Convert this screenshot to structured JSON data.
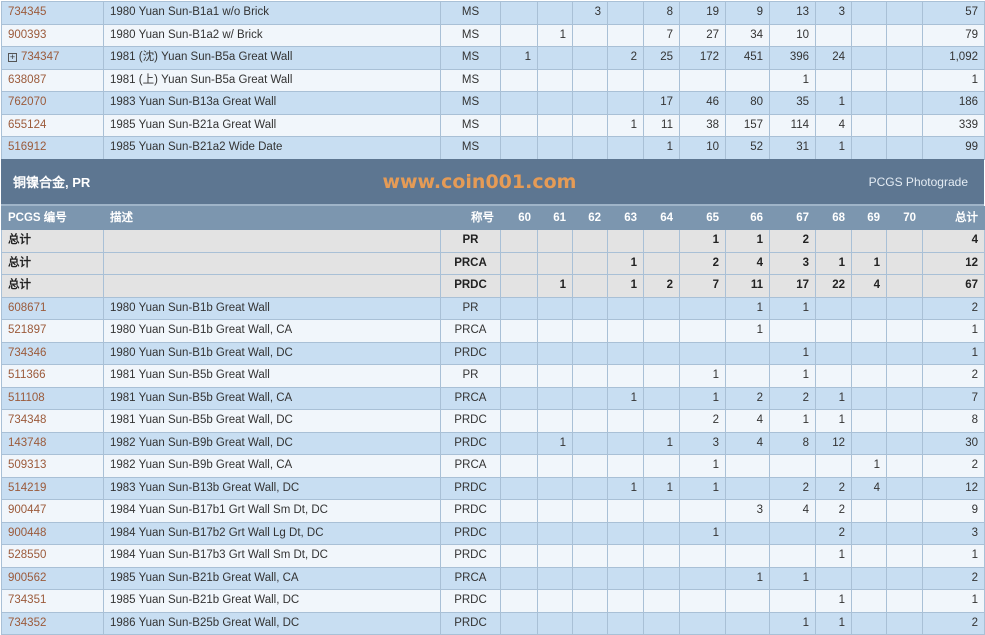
{
  "grades": [
    "60",
    "61",
    "62",
    "63",
    "64",
    "65",
    "66",
    "67",
    "68",
    "69",
    "70"
  ],
  "ms_rows": [
    {
      "id": "734345",
      "desc": "1980 Yuan Sun-B1a1 w/o Brick",
      "grade": "MS",
      "counts": [
        "",
        "",
        "3",
        "",
        "8",
        "19",
        "9",
        "13",
        "3",
        "",
        ""
      ],
      "total": "57"
    },
    {
      "id": "900393",
      "desc": "1980 Yuan Sun-B1a2 w/ Brick",
      "grade": "MS",
      "counts": [
        "",
        "1",
        "",
        "",
        "7",
        "27",
        "34",
        "10",
        "",
        "",
        ""
      ],
      "total": "79"
    },
    {
      "id": "734347",
      "expandable": true,
      "desc": "1981 (沈) Yuan Sun-B5a Great Wall",
      "grade": "MS",
      "counts": [
        "1",
        "",
        "",
        "2",
        "25",
        "172",
        "451",
        "396",
        "24",
        "",
        ""
      ],
      "total": "1,092"
    },
    {
      "id": "638087",
      "desc": "1981 (上) Yuan Sun-B5a Great Wall",
      "grade": "MS",
      "counts": [
        "",
        "",
        "",
        "",
        "",
        "",
        "",
        "1",
        "",
        "",
        ""
      ],
      "total": "1"
    },
    {
      "id": "762070",
      "desc": "1983 Yuan Sun-B13a Great Wall",
      "grade": "MS",
      "counts": [
        "",
        "",
        "",
        "",
        "17",
        "46",
        "80",
        "35",
        "1",
        "",
        ""
      ],
      "total": "186"
    },
    {
      "id": "655124",
      "desc": "1985 Yuan Sun-B21a Great Wall",
      "grade": "MS",
      "counts": [
        "",
        "",
        "",
        "1",
        "11",
        "38",
        "157",
        "114",
        "4",
        "",
        ""
      ],
      "total": "339"
    },
    {
      "id": "516912",
      "desc": "1985 Yuan Sun-B21a2 Wide Date",
      "grade": "MS",
      "counts": [
        "",
        "",
        "",
        "",
        "1",
        "10",
        "52",
        "31",
        "1",
        "",
        ""
      ],
      "total": "99"
    }
  ],
  "section": {
    "title": "铜镍合金, PR",
    "link": "PCGS Photograde"
  },
  "headers": {
    "id": "PCGS 编号",
    "desc": "描述",
    "grade": "称号",
    "total": "总计"
  },
  "totals": [
    {
      "label": "总计",
      "grade": "PR",
      "counts": [
        "",
        "",
        "",
        "",
        "",
        "1",
        "1",
        "2",
        "",
        "",
        ""
      ],
      "total": "4"
    },
    {
      "label": "总计",
      "grade": "PRCA",
      "counts": [
        "",
        "",
        "",
        "1",
        "",
        "2",
        "4",
        "3",
        "1",
        "1",
        ""
      ],
      "total": "12"
    },
    {
      "label": "总计",
      "grade": "PRDC",
      "counts": [
        "",
        "1",
        "",
        "1",
        "2",
        "7",
        "11",
        "17",
        "22",
        "4",
        ""
      ],
      "total": "67"
    }
  ],
  "pr_rows": [
    {
      "id": "608671",
      "desc": "1980 Yuan Sun-B1b Great Wall",
      "grade": "PR",
      "counts": [
        "",
        "",
        "",
        "",
        "",
        "",
        "1",
        "1",
        "",
        "",
        ""
      ],
      "total": "2"
    },
    {
      "id": "521897",
      "desc": "1980 Yuan Sun-B1b Great Wall, CA",
      "grade": "PRCA",
      "counts": [
        "",
        "",
        "",
        "",
        "",
        "",
        "1",
        "",
        "",
        "",
        ""
      ],
      "total": "1"
    },
    {
      "id": "734346",
      "desc": "1980 Yuan Sun-B1b Great Wall, DC",
      "grade": "PRDC",
      "counts": [
        "",
        "",
        "",
        "",
        "",
        "",
        "",
        "1",
        "",
        "",
        ""
      ],
      "total": "1"
    },
    {
      "id": "511366",
      "desc": "1981 Yuan Sun-B5b Great Wall",
      "grade": "PR",
      "counts": [
        "",
        "",
        "",
        "",
        "",
        "1",
        "",
        "1",
        "",
        "",
        ""
      ],
      "total": "2"
    },
    {
      "id": "511108",
      "desc": "1981 Yuan Sun-B5b Great Wall, CA",
      "grade": "PRCA",
      "counts": [
        "",
        "",
        "",
        "1",
        "",
        "1",
        "2",
        "2",
        "1",
        "",
        ""
      ],
      "total": "7"
    },
    {
      "id": "734348",
      "desc": "1981 Yuan Sun-B5b Great Wall, DC",
      "grade": "PRDC",
      "counts": [
        "",
        "",
        "",
        "",
        "",
        "2",
        "4",
        "1",
        "1",
        "",
        ""
      ],
      "total": "8"
    },
    {
      "id": "143748",
      "desc": "1982 Yuan Sun-B9b Great Wall, DC",
      "grade": "PRDC",
      "counts": [
        "",
        "1",
        "",
        "",
        "1",
        "3",
        "4",
        "8",
        "12",
        "",
        ""
      ],
      "total": "30"
    },
    {
      "id": "509313",
      "desc": "1982 Yuan Sun-B9b Great Wall, CA",
      "grade": "PRCA",
      "counts": [
        "",
        "",
        "",
        "",
        "",
        "1",
        "",
        "",
        "",
        "1",
        ""
      ],
      "total": "2"
    },
    {
      "id": "514219",
      "desc": "1983 Yuan Sun-B13b Great Wall, DC",
      "grade": "PRDC",
      "counts": [
        "",
        "",
        "",
        "1",
        "1",
        "1",
        "",
        "2",
        "2",
        "4",
        ""
      ],
      "total": "12"
    },
    {
      "id": "900447",
      "desc": "1984 Yuan Sun-B17b1 Grt Wall Sm Dt, DC",
      "grade": "PRDC",
      "counts": [
        "",
        "",
        "",
        "",
        "",
        "",
        "3",
        "4",
        "2",
        "",
        ""
      ],
      "total": "9"
    },
    {
      "id": "900448",
      "desc": "1984 Yuan Sun-B17b2 Grt Wall Lg Dt, DC",
      "grade": "PRDC",
      "counts": [
        "",
        "",
        "",
        "",
        "",
        "1",
        "",
        "",
        "2",
        "",
        ""
      ],
      "total": "3"
    },
    {
      "id": "528550",
      "desc": "1984 Yuan Sun-B17b3 Grt Wall Sm Dt, DC",
      "grade": "PRDC",
      "counts": [
        "",
        "",
        "",
        "",
        "",
        "",
        "",
        "",
        "1",
        "",
        ""
      ],
      "total": "1"
    },
    {
      "id": "900562",
      "desc": "1985 Yuan Sun-B21b Great Wall, CA",
      "grade": "PRCA",
      "counts": [
        "",
        "",
        "",
        "",
        "",
        "",
        "1",
        "1",
        "",
        "",
        ""
      ],
      "total": "2"
    },
    {
      "id": "734351",
      "desc": "1985 Yuan Sun-B21b Great Wall, DC",
      "grade": "PRDC",
      "counts": [
        "",
        "",
        "",
        "",
        "",
        "",
        "",
        "",
        "1",
        "",
        ""
      ],
      "total": "1"
    },
    {
      "id": "734352",
      "desc": "1986 Yuan Sun-B25b Great Wall, DC",
      "grade": "PRDC",
      "counts": [
        "",
        "",
        "",
        "",
        "",
        "",
        "",
        "1",
        "1",
        "",
        ""
      ],
      "total": "2"
    }
  ],
  "watermark": "www.coin001.com",
  "colors": {
    "link": "#9b5a3a",
    "row_dark": "#c8def2",
    "row_light": "#f1f6fb",
    "section_bg": "#5d7691",
    "header_bg": "#7c96af",
    "total_bg": "#e3e3e3"
  }
}
